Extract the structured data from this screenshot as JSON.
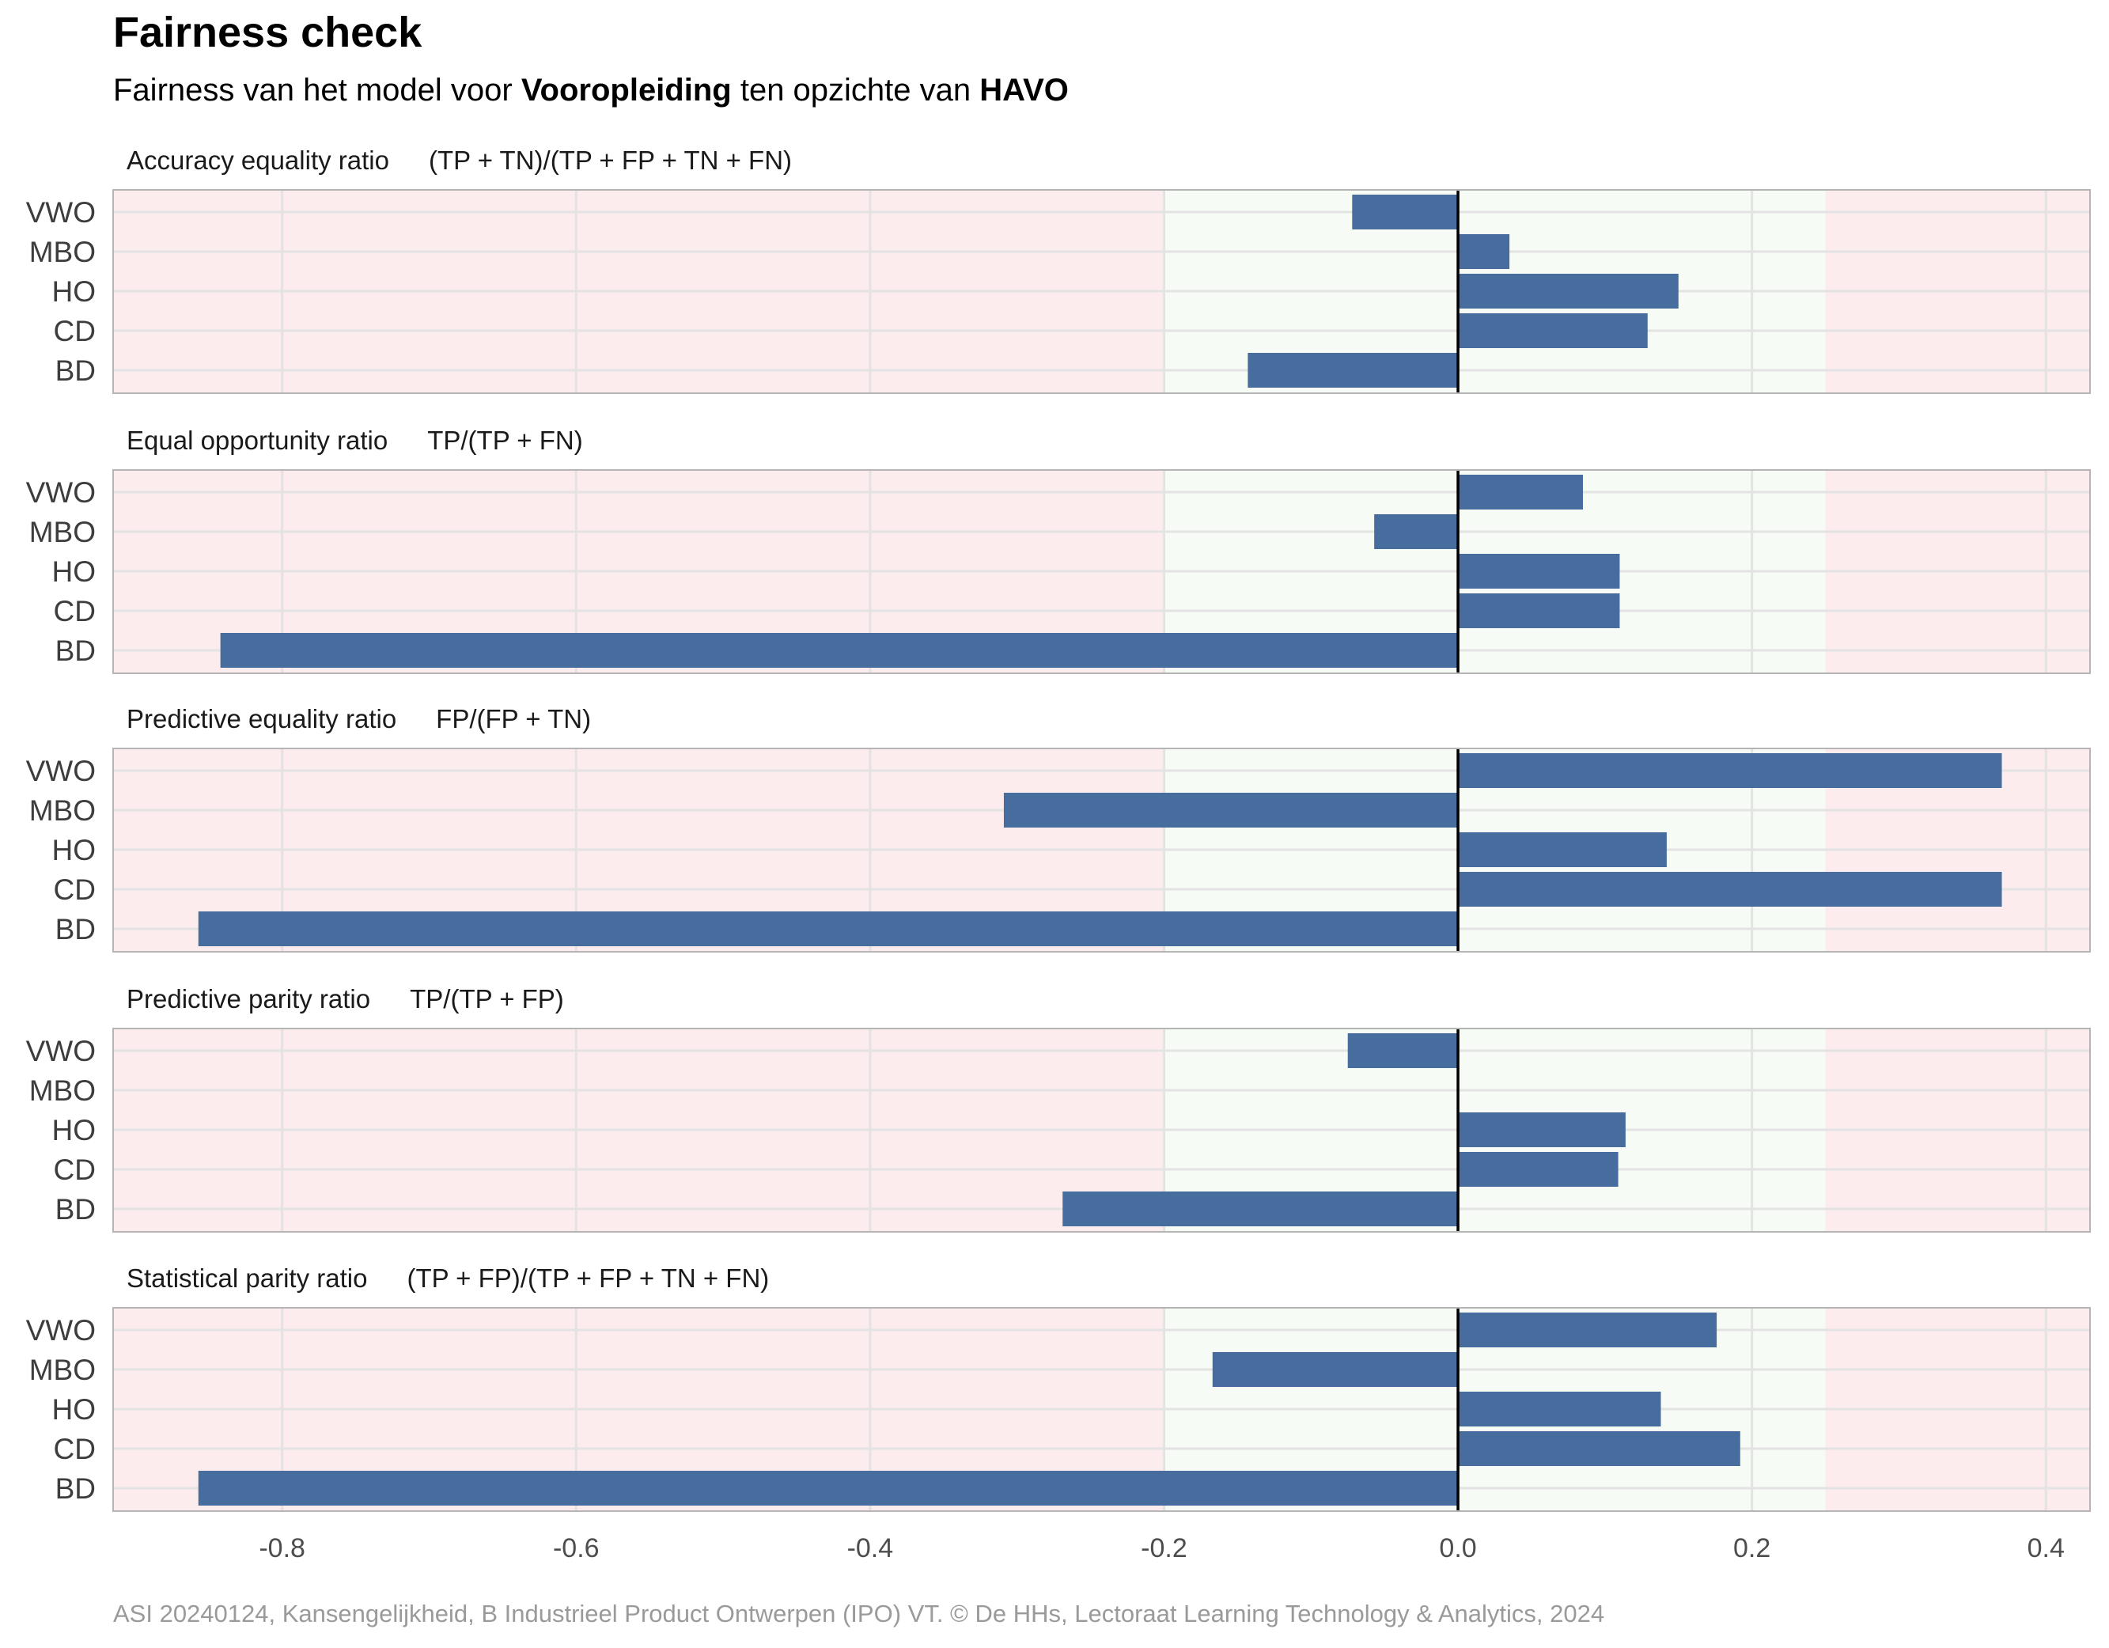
{
  "title": "Fairness check",
  "subtitle": {
    "part1": "Fairness van het model voor ",
    "bold1": "Vooropleiding",
    "part2": " ten opzichte van ",
    "bold2": "HAVO"
  },
  "caption": "ASI 20240124, Kansengelijkheid, B Industrieel Product Ontwerpen (IPO) VT. © De HHs, Lectoraat Learning Technology & Analytics, 2024",
  "colors": {
    "bar": "#466d9d",
    "zone_bad": "#fcecee",
    "zone_ok": "#f6fbf5",
    "grid": "#e3e3e3",
    "panel_border": "#b5b5b5",
    "zero_line": "#000000"
  },
  "chart_data": {
    "type": "bar",
    "orientation": "horizontal",
    "categories": [
      "VWO",
      "MBO",
      "HO",
      "CD",
      "BD"
    ],
    "xlim": [
      -0.915,
      0.43
    ],
    "xticks": [
      -0.8,
      -0.6,
      -0.4,
      -0.2,
      0.0,
      0.2,
      0.4
    ],
    "xtick_labels": [
      "-0.8",
      "-0.6",
      "-0.4",
      "-0.2",
      "0.0",
      "0.2",
      "0.4"
    ],
    "acceptable_band": [
      -0.2,
      0.25
    ],
    "grid": true,
    "panels": [
      {
        "name": "Accuracy equality ratio",
        "formula": "(TP + TN)/(TP + FP + TN + FN)",
        "values": [
          -0.072,
          0.035,
          0.15,
          0.129,
          -0.143
        ]
      },
      {
        "name": "Equal opportunity ratio",
        "formula": "TP/(TP + FN)",
        "values": [
          0.085,
          -0.057,
          0.11,
          0.11,
          -0.842
        ]
      },
      {
        "name": "Predictive equality ratio",
        "formula": "FP/(FP + TN)",
        "values": [
          0.37,
          -0.309,
          0.142,
          0.37,
          -0.857
        ]
      },
      {
        "name": "Predictive parity ratio",
        "formula": "TP/(TP + FP)",
        "values": [
          -0.075,
          null,
          0.114,
          0.109,
          -0.269
        ]
      },
      {
        "name": "Statistical parity ratio",
        "formula": "(TP + FP)/(TP + FP + TN + FN)",
        "values": [
          0.176,
          -0.167,
          0.138,
          0.192,
          -0.857
        ]
      }
    ]
  }
}
